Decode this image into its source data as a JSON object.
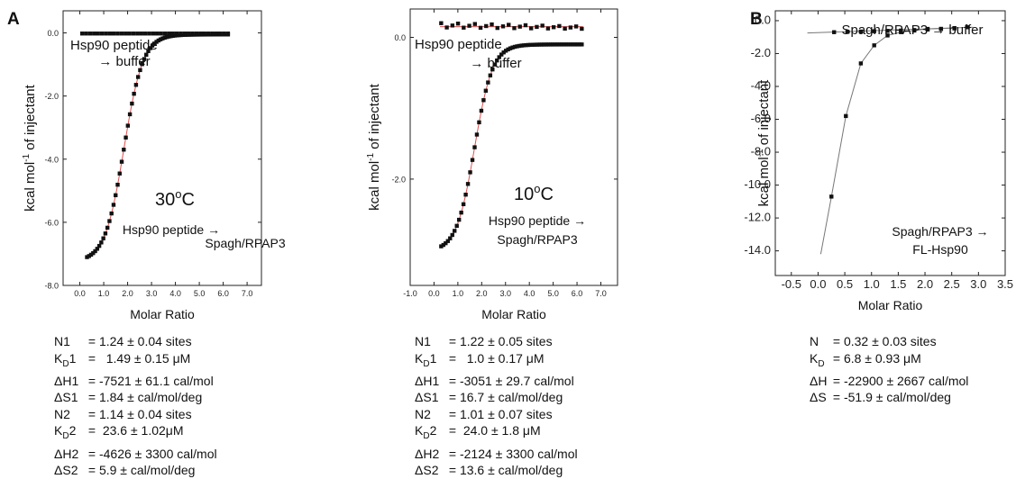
{
  "panel_labels": {
    "a": "A",
    "b": "B"
  },
  "chart_data": [
    {
      "id": "A1",
      "type": "scatter",
      "xlabel": "Molar Ratio",
      "ylabel_pre": "kcal mol",
      "ylabel_sup": "-1",
      "ylabel_post": " of injectant",
      "xlim": [
        -0.7,
        7.6
      ],
      "ylim": [
        -8.0,
        0.7
      ],
      "xticks": [
        0.0,
        1.0,
        2.0,
        3.0,
        4.0,
        5.0,
        6.0,
        7.0
      ],
      "xtick_labels": [
        "0.0",
        "1.0",
        "2.0",
        "3.0",
        "4.0",
        "5.0",
        "6.0",
        "7.0"
      ],
      "yticks": [
        0.0,
        -2.0,
        -4.0,
        -6.0,
        -8.0
      ],
      "ytick_labels": [
        "0.0",
        "-2.0",
        "-4.0",
        "-6.0",
        "-8.0"
      ],
      "temperature": {
        "value": "30",
        "sup": "o",
        "unit": "C"
      },
      "annotations": {
        "control_line1": "Hsp90 peptide",
        "control_line2": "→ buffer",
        "binding_line1": "Hsp90 peptide →",
        "binding_line2": "Spagh/RPAP3"
      },
      "series": [
        {
          "role": "binding",
          "model": "sigmoid",
          "x_start": 0.3,
          "x_end": 6.2,
          "n": 70,
          "y_low": -7.25,
          "y_high": -0.05,
          "midpoint": 1.85,
          "width": 0.4,
          "fit_color": "#e05050",
          "marker_color": "#111111"
        },
        {
          "role": "control",
          "model": "flat",
          "x_start": 0.1,
          "x_end": 6.2,
          "n": 38,
          "y_low": -0.02,
          "y_high": -0.02,
          "fit_color": "#e05050",
          "marker_color": "#111111"
        }
      ],
      "results": [
        {
          "label": "N1",
          "value": "= 1.24 ± 0.04 sites"
        },
        {
          "label": "K_D1",
          "value": "=   1.49 ± 0.15 μM"
        },
        {
          "label": "ΔH1",
          "value": "= -7521 ± 61.1 cal/mol"
        },
        {
          "label": "ΔS1",
          "value": "= 1.84 ± cal/mol/deg"
        },
        {
          "label": "N2",
          "value": "= 1.14 ± 0.04 sites"
        },
        {
          "label": "K_D2",
          "value": "=  23.6 ± 1.02μM"
        },
        {
          "label": "ΔH2",
          "value": "= -4626 ± 3300 cal/mol"
        },
        {
          "label": "ΔS2",
          "value": "= 5.9 ± cal/mol/deg"
        }
      ]
    },
    {
      "id": "A2",
      "type": "scatter",
      "xlabel": "Molar Ratio",
      "ylabel_pre": "kcal mol",
      "ylabel_sup": "-1",
      "ylabel_post": " of injectant",
      "xlim": [
        -1.0,
        7.7
      ],
      "ylim": [
        -3.5,
        0.4
      ],
      "xticks": [
        -1.0,
        0.0,
        1.0,
        2.0,
        3.0,
        4.0,
        5.0,
        6.0,
        7.0
      ],
      "xtick_labels": [
        "-1.0",
        "0.0",
        "1.0",
        "2.0",
        "3.0",
        "4.0",
        "5.0",
        "6.0",
        "7.0"
      ],
      "yticks": [
        0.0,
        -2.0
      ],
      "ytick_labels": [
        "0.0",
        "-2.0"
      ],
      "temperature": {
        "value": "10",
        "sup": "o",
        "unit": "C"
      },
      "annotations": {
        "control_line1": "Hsp90 peptide",
        "control_line2": "→ buffer",
        "binding_line1": "Hsp90 peptide →",
        "binding_line2": "Spagh/RPAP3"
      },
      "series": [
        {
          "role": "binding",
          "model": "sigmoid",
          "x_start": 0.3,
          "x_end": 6.2,
          "n": 64,
          "y_low": -3.02,
          "y_high": -0.1,
          "midpoint": 1.7,
          "width": 0.38,
          "fit_color": "#e05050",
          "marker_color": "#111111"
        },
        {
          "role": "control",
          "model": "flat",
          "x_start": 0.3,
          "x_end": 6.2,
          "n": 26,
          "y_low": 0.1,
          "y_high": 0.2,
          "fit_color": "#e05050",
          "marker_color": "#111111"
        }
      ],
      "results": [
        {
          "label": "N1",
          "value": "= 1.22 ± 0.05 sites"
        },
        {
          "label": "K_D1",
          "value": "=   1.0 ± 0.17 μM"
        },
        {
          "label": "ΔH1",
          "value": "= -3051 ± 29.7 cal/mol"
        },
        {
          "label": "ΔS1",
          "value": "= 16.7 ± cal/mol/deg"
        },
        {
          "label": "N2",
          "value": "= 1.01 ± 0.07 sites"
        },
        {
          "label": "K_D2",
          "value": "=  24.0 ± 1.8 μM"
        },
        {
          "label": "ΔH2",
          "value": "= -2124 ± 3300 cal/mol"
        },
        {
          "label": "ΔS2",
          "value": "= 13.6 ± cal/mol/deg"
        }
      ]
    },
    {
      "id": "B",
      "type": "scatter",
      "xlabel": "Molar Ratio",
      "ylabel_pre": "kcal mol",
      "ylabel_sup": "-1",
      "ylabel_post": " of injectant",
      "xlim": [
        -0.8,
        3.5
      ],
      "ylim": [
        -15.5,
        0.6
      ],
      "xticks": [
        -0.5,
        0.0,
        0.5,
        1.0,
        1.5,
        2.0,
        2.5,
        3.0,
        3.5
      ],
      "xtick_labels": [
        "-0.5",
        "0.0",
        "0.5",
        "1.0",
        "1.5",
        "2.0",
        "2.5",
        "3.0",
        "3.5"
      ],
      "yticks": [
        0.0,
        -2.0,
        -4.0,
        -6.0,
        -8.0,
        -10.0,
        -12.0,
        -14.0
      ],
      "ytick_labels": [
        "0.0",
        "-2.0",
        "-4.0",
        "-6.0",
        "-8.0",
        "-10.0",
        "-12.0",
        "-14.0"
      ],
      "annotations": {
        "control_line1": "Spagh/RPAP3 → buffer",
        "binding_line1": "Spagh/RPAP3 →",
        "binding_line2": "FL-Hsp90"
      },
      "series": [
        {
          "role": "binding",
          "model": "points",
          "points": [
            [
              0.25,
              -10.7
            ],
            [
              0.52,
              -5.8
            ],
            [
              0.8,
              -2.6
            ],
            [
              1.05,
              -1.5
            ],
            [
              1.3,
              -0.9
            ],
            [
              1.55,
              -0.7
            ],
            [
              1.8,
              -0.6
            ],
            [
              2.05,
              -0.5
            ],
            [
              2.3,
              -0.5
            ],
            [
              2.55,
              -0.45
            ]
          ],
          "fit": [
            [
              0.05,
              -14.2
            ],
            [
              0.25,
              -10.7
            ],
            [
              0.52,
              -5.8
            ],
            [
              0.8,
              -2.6
            ],
            [
              1.05,
              -1.5
            ],
            [
              1.3,
              -0.9
            ],
            [
              1.55,
              -0.7
            ],
            [
              1.8,
              -0.6
            ],
            [
              2.05,
              -0.5
            ],
            [
              2.55,
              -0.45
            ]
          ],
          "fit_color": "#777777",
          "marker_color": "#111111"
        },
        {
          "role": "control",
          "model": "points",
          "points": [
            [
              0.3,
              -0.7
            ],
            [
              0.55,
              -0.68
            ],
            [
              0.8,
              -0.66
            ],
            [
              1.05,
              -0.64
            ],
            [
              1.3,
              -0.62
            ],
            [
              1.55,
              -0.6
            ],
            [
              1.8,
              -0.57
            ],
            [
              2.05,
              -0.54
            ],
            [
              2.3,
              -0.5
            ],
            [
              2.55,
              -0.47
            ],
            [
              2.8,
              -0.4
            ]
          ],
          "fit": [
            [
              -0.2,
              -0.75
            ],
            [
              2.9,
              -0.4
            ]
          ],
          "fit_color": "#777777",
          "marker_color": "#111111"
        }
      ],
      "results": [
        {
          "label": "N",
          "value": "= 0.32 ± 0.03 sites"
        },
        {
          "label": "K_D",
          "value": "= 6.8 ± 0.93 μM"
        },
        {
          "label": "ΔH",
          "value": "= -22900 ± 2667 cal/mol"
        },
        {
          "label": "ΔS",
          "value": "= -51.9 ± cal/mol/deg"
        }
      ]
    }
  ]
}
